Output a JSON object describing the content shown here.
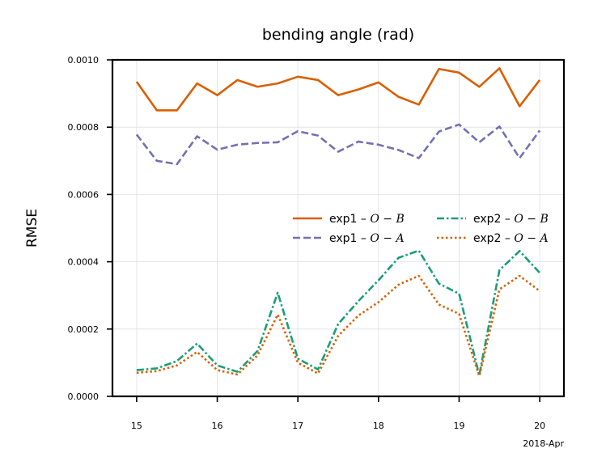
{
  "chart_data": {
    "type": "line",
    "title": "bending angle (rad)",
    "xlabel": "",
    "ylabel": "RMSE",
    "x_offset_label": "2018-Apr",
    "x_range": [
      14.7,
      20.3
    ],
    "ylim": [
      0,
      0.001
    ],
    "x_ticks": [
      15,
      16,
      17,
      18,
      19,
      20
    ],
    "x_tick_labels": [
      "15",
      "16",
      "17",
      "18",
      "19",
      "20"
    ],
    "y_ticks": [
      0,
      0.0002,
      0.0004,
      0.0006,
      0.0008,
      0.001
    ],
    "y_tick_labels": [
      "0.0000",
      "0.0002",
      "0.0004",
      "0.0006",
      "0.0008",
      "0.0010"
    ],
    "grid": true,
    "legend_position": "center-right",
    "x": [
      15.0,
      15.25,
      15.5,
      15.75,
      16.0,
      16.25,
      16.5,
      16.75,
      17.0,
      17.25,
      17.5,
      17.75,
      18.0,
      18.25,
      18.5,
      18.75,
      19.0,
      19.25,
      19.5,
      19.75,
      20.0
    ],
    "series": [
      {
        "name": "exp1 – O − B",
        "label_text": "exp1 – ",
        "label_math": "O − B",
        "color": "#d95f02",
        "dash": "solid",
        "values": [
          0.000935,
          0.00085,
          0.00085,
          0.00093,
          0.000895,
          0.00094,
          0.00092,
          0.00093,
          0.00095,
          0.00094,
          0.000895,
          0.000912,
          0.000933,
          0.00089,
          0.000867,
          0.000973,
          0.000962,
          0.00092,
          0.000975,
          0.000862,
          0.00094
        ]
      },
      {
        "name": "exp1 – O − A",
        "label_text": "exp1 – ",
        "label_math": "O − A",
        "color": "#7570b3",
        "dash": "dashed",
        "values": [
          0.000778,
          0.0007,
          0.00069,
          0.000773,
          0.000733,
          0.000748,
          0.000753,
          0.000755,
          0.000788,
          0.000775,
          0.000727,
          0.000757,
          0.000748,
          0.000732,
          0.000708,
          0.000787,
          0.000808,
          0.000755,
          0.000802,
          0.000708,
          0.00079
        ]
      },
      {
        "name": "exp2 – O − B",
        "label_text": "exp2 – ",
        "label_math": "O − B",
        "color": "#1b9e77",
        "dash": "dashdot",
        "values": [
          7.8e-05,
          8.3e-05,
          0.000105,
          0.000157,
          9.2e-05,
          7.3e-05,
          0.000135,
          0.000308,
          0.000112,
          8e-05,
          0.000215,
          0.000283,
          0.000345,
          0.000412,
          0.000433,
          0.000335,
          0.000305,
          6.3e-05,
          0.000375,
          0.000432,
          0.000367
        ]
      },
      {
        "name": "exp2 – O − A",
        "label_text": "exp2 – ",
        "label_math": "O − A",
        "color": "#d95f02",
        "dash": "dotted",
        "values": [
          7e-05,
          7.5e-05,
          9.2e-05,
          0.000132,
          7.8e-05,
          6.5e-05,
          0.000122,
          0.000243,
          0.0001,
          6.8e-05,
          0.00018,
          0.00024,
          0.00028,
          0.000332,
          0.000358,
          0.000273,
          0.000245,
          6e-05,
          0.000318,
          0.000358,
          0.000313
        ]
      }
    ]
  }
}
